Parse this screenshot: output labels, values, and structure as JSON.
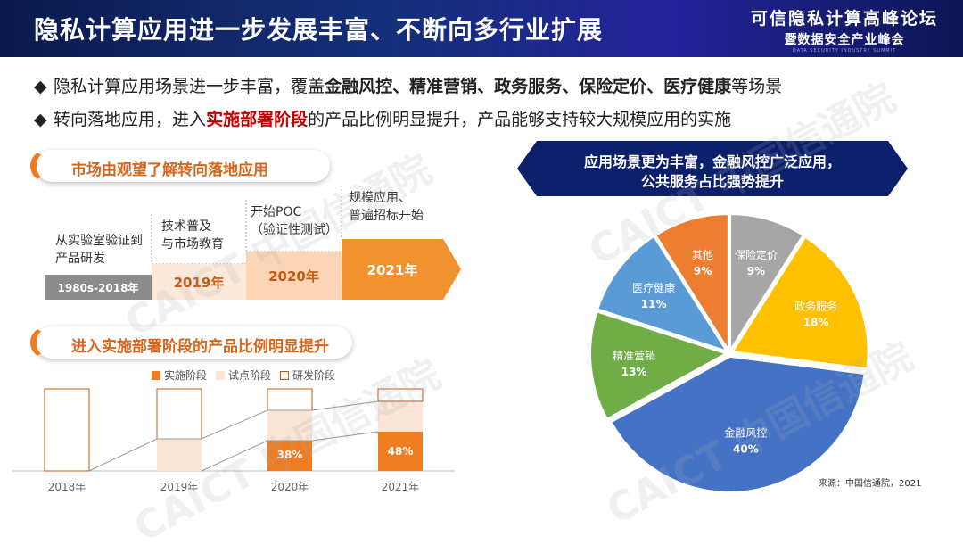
{
  "header": {
    "title": "隐私计算应用进一步发展丰富、不断向多行业扩展",
    "forum_line1": "可信隐私计算高峰论坛",
    "forum_line2": "暨数据安全产业峰会",
    "forum_line3": "DATA SECURITY INDUSTRY SUMMIT"
  },
  "bullets": {
    "b1_prefix": "隐私计算应用场景进一步丰富，覆盖",
    "b1_bold": "金融风控、精准营销、政务服务、保险定价、医疗健康",
    "b1_suffix": "等场景",
    "b2_prefix": "转向落地应用，进入",
    "b2_red": "实施部署阶段",
    "b2_suffix": "的产品比例明显提升，产品能够支持较大规模应用的实施"
  },
  "section1": {
    "title": "市场由观望了解转向落地应用",
    "stages": [
      {
        "desc_l1": "从实验室验证到",
        "desc_l2": "产品研发",
        "period": "1980s-2018年"
      },
      {
        "desc_l1": "技术普及",
        "desc_l2": "与市场教育",
        "period": "2019年"
      },
      {
        "desc_l1": "开始POC",
        "desc_l2": "（验证性测试）",
        "period": "2020年"
      },
      {
        "desc_l1": "规模应用、",
        "desc_l2": "普遍招标开始",
        "period": "2021年"
      }
    ]
  },
  "section2": {
    "title": "进入实施部署阶段的产品比例明显提升",
    "legend": [
      "实施阶段",
      "试点阶段",
      "研发阶段"
    ],
    "years": [
      "2018年",
      "2019年",
      "2020年",
      "2021年"
    ],
    "label_2020": "38%",
    "label_2021": "48%"
  },
  "chart_data": {
    "type": "pie",
    "title": "应用场景更为丰富，金融风控广泛应用，公共服务占比强势提升",
    "title_line1": "应用场景更为丰富，金融风控广泛应用，",
    "title_line2": "公共服务占比强势提升",
    "slices": [
      {
        "label": "保险定价",
        "value": 9,
        "display": "9%",
        "color": "#a6a6a6"
      },
      {
        "label": "政务服务",
        "value": 18,
        "display": "18%",
        "color": "#ffc000"
      },
      {
        "label": "金融风控",
        "value": 40,
        "display": "40%",
        "color": "#4472c4"
      },
      {
        "label": "精准营销",
        "value": 13,
        "display": "13%",
        "color": "#70ad47"
      },
      {
        "label": "医疗健康",
        "value": 11,
        "display": "11%",
        "color": "#5b9bd5"
      },
      {
        "label": "其他",
        "value": 9,
        "display": "9%",
        "color": "#ed7d31"
      }
    ],
    "source": "来源：中国信通院，2021"
  },
  "colors": {
    "accent": "#ee7d21",
    "implement": "#ee7d21",
    "pilot": "#fbe5d6",
    "research_border": "#c55a11",
    "banner": "#0c1f6b"
  },
  "watermark": "CAICT 中国信通院"
}
